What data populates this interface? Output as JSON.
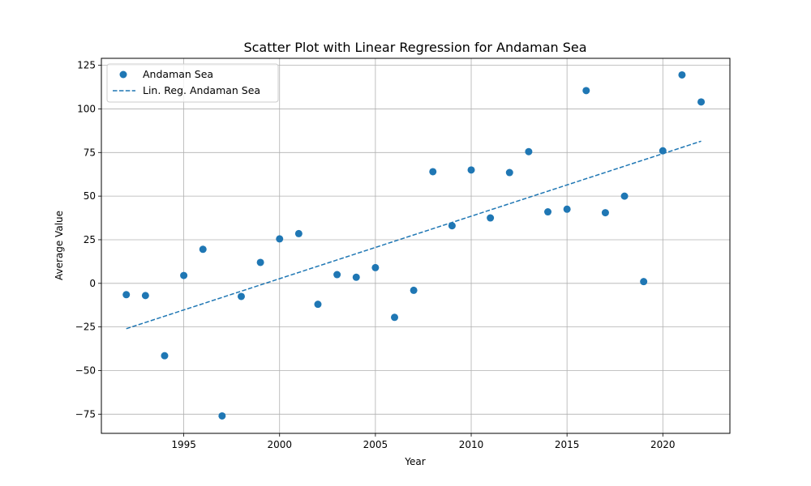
{
  "chart_data": {
    "type": "scatter",
    "title": "Scatter Plot with Linear Regression for Andaman Sea",
    "xlabel": "Year",
    "ylabel": "Average Value",
    "xlim": [
      1990.7,
      2023.5
    ],
    "ylim": [
      -86,
      129
    ],
    "xticks": [
      1995,
      2000,
      2005,
      2010,
      2015,
      2020
    ],
    "yticks": [
      -75,
      -50,
      -25,
      0,
      25,
      50,
      75,
      100,
      125
    ],
    "grid": true,
    "legend_position": "top-left",
    "color": "#1f77b4",
    "series": [
      {
        "name": "Andaman Sea",
        "kind": "scatter",
        "x": [
          1992,
          1993,
          1994,
          1995,
          1996,
          1997,
          1998,
          1999,
          2000,
          2001,
          2002,
          2003,
          2004,
          2005,
          2006,
          2007,
          2008,
          2009,
          2010,
          2011,
          2012,
          2013,
          2014,
          2015,
          2016,
          2017,
          2018,
          2019,
          2020,
          2021,
          2022
        ],
        "y": [
          -6.5,
          -7,
          -41.5,
          4.5,
          19.5,
          -76,
          -7.5,
          12,
          25.5,
          28.5,
          -12,
          5,
          3.5,
          9,
          -19.5,
          -4,
          64,
          33,
          65,
          37.5,
          63.5,
          75.5,
          41,
          42.5,
          110.5,
          40.5,
          50,
          1,
          76,
          119.5,
          104
        ]
      },
      {
        "name": "Lin. Reg. Andaman Sea",
        "kind": "line",
        "style": "dashed",
        "x": [
          1992,
          2022
        ],
        "y": [
          -26,
          81.5
        ]
      }
    ]
  }
}
